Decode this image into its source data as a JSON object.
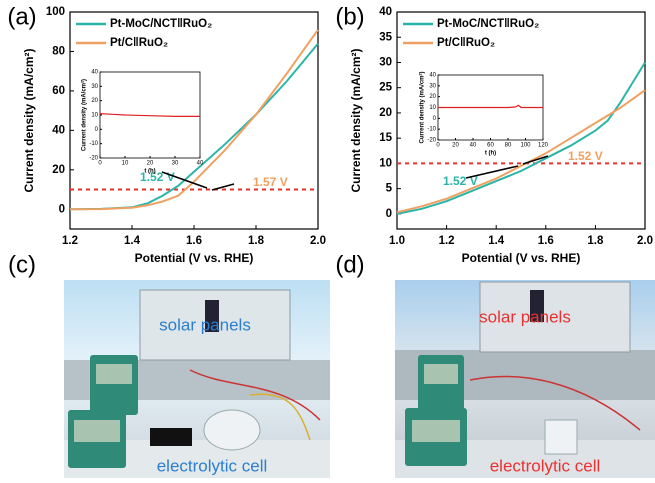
{
  "chart_data": [
    {
      "type": "line",
      "panel": "(a)",
      "xlabel": "Potential (V vs. RHE)",
      "ylabel": "Current density (mA/cm²)",
      "xlim": [
        1.2,
        2.0
      ],
      "ylim": [
        -10,
        100
      ],
      "xticks": [
        1.2,
        1.4,
        1.6,
        1.8,
        {
          "value": 2.0,
          "label": "2.0"
        }
      ],
      "yticks": [
        0,
        20,
        40,
        60,
        80,
        100
      ],
      "x": [
        1.2,
        1.3,
        1.4,
        1.45,
        1.5,
        1.55,
        1.6,
        1.7,
        1.8,
        1.9,
        2.0
      ],
      "series": [
        {
          "name": "Pt-MoC/NCT‖RuO₂",
          "color": "#2bb5a8",
          "values": [
            0,
            0.2,
            1,
            3,
            7,
            12,
            19,
            33,
            48,
            65,
            84
          ]
        },
        {
          "name": "Pt/C‖RuO₂",
          "color": "#f0a060",
          "values": [
            0,
            0.1,
            0.8,
            2,
            4,
            7,
            14,
            30,
            48,
            69,
            91
          ]
        }
      ],
      "reference_line": {
        "value": 10,
        "color": "#e8302a"
      },
      "annotations": [
        {
          "text": "1.52 V",
          "color": "#2bb5a8"
        },
        {
          "text": "1.57 V",
          "color": "#f0a060"
        }
      ],
      "inset": {
        "type": "line",
        "xlabel": "t (h)",
        "ylabel": "Current density (mA/cm²)",
        "xlim": [
          0,
          40
        ],
        "ylim": [
          -20,
          40
        ],
        "xticks": [
          0,
          10,
          20,
          30,
          40
        ],
        "yticks": [
          -20,
          -10,
          0,
          10,
          20,
          30,
          40
        ],
        "series": [
          {
            "color": "#e02020",
            "x": [
              0,
              5,
              10,
              20,
              30,
              40
            ],
            "values": [
              11,
              10.5,
              10,
              9.5,
              9,
              9
            ]
          }
        ]
      }
    },
    {
      "type": "line",
      "panel": "(b)",
      "xlabel": "Potential (V vs. RHE)",
      "ylabel": "Current density (mA/cm²)",
      "xlim": [
        1.0,
        2.0
      ],
      "ylim": [
        -3,
        40
      ],
      "xticks": [
        {
          "value": 1.0,
          "label": "1.0"
        },
        1.2,
        1.4,
        1.6,
        1.8,
        {
          "value": 2.0,
          "label": "2.0"
        }
      ],
      "yticks": [
        0,
        5,
        10,
        15,
        20,
        25,
        30,
        35,
        40
      ],
      "x": [
        1.0,
        1.1,
        1.2,
        1.3,
        1.4,
        1.5,
        1.6,
        1.7,
        1.8,
        1.85,
        1.9,
        2.0
      ],
      "series": [
        {
          "name": "Pt-MoC/NCT‖RuO₂",
          "color": "#2bb5a8",
          "values": [
            0,
            1,
            2.5,
            4.5,
            6.5,
            8.5,
            11,
            13.5,
            16.5,
            18.5,
            22,
            30
          ]
        },
        {
          "name": "Pt/C‖RuO₂",
          "color": "#f0a060",
          "values": [
            0.3,
            1.5,
            3,
            5,
            7,
            9.5,
            12,
            15,
            18,
            19.5,
            21,
            24.5
          ]
        }
      ],
      "reference_line": {
        "value": 10,
        "color": "#e8302a"
      },
      "annotations": [
        {
          "text": "1.52 V",
          "color": "#2bb5a8"
        },
        {
          "text": "1.52 V",
          "color": "#f0a060"
        }
      ],
      "inset": {
        "type": "line",
        "xlabel": "t (h)",
        "ylabel": "Current density (mA/cm²)",
        "xlim": [
          0,
          120
        ],
        "ylim": [
          -20,
          40
        ],
        "xticks": [
          0,
          20,
          40,
          60,
          80,
          100,
          120
        ],
        "yticks": [
          -20,
          -10,
          0,
          10,
          20,
          30,
          40
        ],
        "series": [
          {
            "color": "#e02020",
            "x": [
              0,
              20,
              40,
              60,
              80,
              88,
              92,
              95,
              100,
              120
            ],
            "values": [
              10,
              10,
              10,
              10,
              10,
              10.5,
              12,
              10,
              10,
              10
            ]
          }
        ]
      }
    }
  ],
  "photos": [
    {
      "panel": "(c)",
      "labels": [
        {
          "text": "solar panels",
          "color": "#2a7fd0"
        },
        {
          "text": "electrolytic cell",
          "color": "#2a7fd0"
        }
      ]
    },
    {
      "panel": "(d)",
      "labels": [
        {
          "text": "solar panels",
          "color": "#ee3030"
        },
        {
          "text": "electrolytic cell",
          "color": "#ee3030"
        }
      ]
    }
  ]
}
